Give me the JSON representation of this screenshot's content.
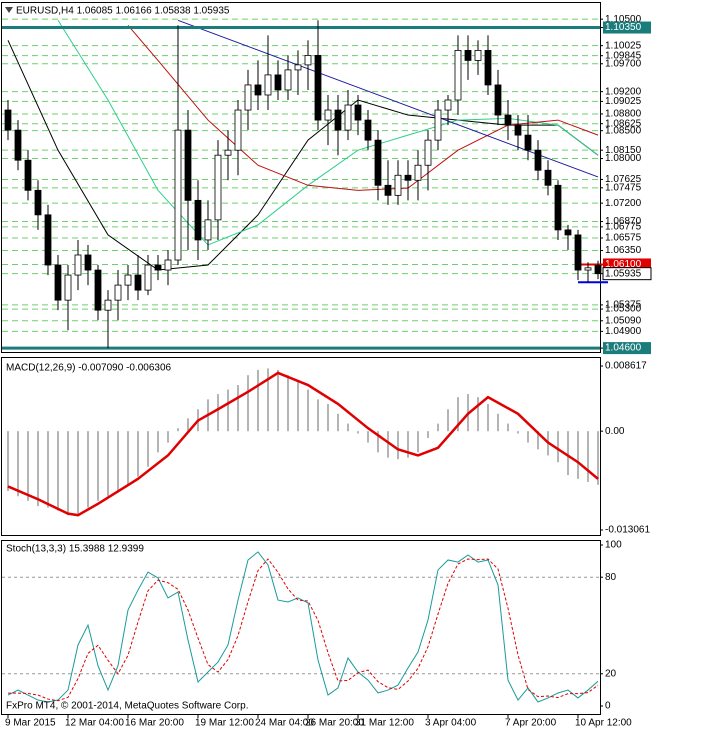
{
  "chart_data": [
    {
      "type": "candlestick",
      "title": "EURUSD,H4  1.06085 1.06166 1.05838 1.05935",
      "open": [
        1.0887,
        1.0851,
        1.0797,
        1.0743,
        1.0699,
        1.0609,
        1.0546,
        1.0591,
        1.0627,
        1.06,
        1.0528,
        1.0546,
        1.0573,
        1.0591,
        1.0564,
        1.0609,
        1.06,
        1.0618,
        1.0851,
        1.0725,
        1.0654,
        1.069,
        1.0806,
        1.0815,
        1.0887,
        1.0932,
        1.0914,
        1.095,
        1.0923,
        1.0959,
        1.0968,
        1.0985,
        1.0869,
        1.0887,
        1.0851,
        1.0896,
        1.0869,
        1.0833,
        1.0752,
        1.0734,
        1.077,
        1.0761,
        1.0788,
        1.0833,
        1.0887,
        1.0905,
        1.0994,
        1.0976,
        1.0994,
        1.0932,
        1.0878,
        1.086,
        1.0842,
        1.0815,
        1.0779,
        1.0752,
        1.0672,
        1.0663,
        1.06,
        1.06085
      ],
      "high": [
        1.0905,
        1.0869,
        1.0815,
        1.0761,
        1.0717,
        1.0627,
        1.0609,
        1.0654,
        1.0645,
        1.0609,
        1.0564,
        1.06,
        1.0609,
        1.0627,
        1.0627,
        1.0627,
        1.0636,
        1.1039,
        1.0887,
        1.0761,
        1.0725,
        1.0833,
        1.0851,
        1.0905,
        1.0959,
        1.0976,
        1.1021,
        1.0976,
        1.0985,
        1.0994,
        1.1012,
        1.1048,
        1.0914,
        1.0914,
        1.0923,
        1.0914,
        1.0887,
        1.0851,
        1.0797,
        1.0797,
        1.0797,
        1.0815,
        1.0851,
        1.0905,
        1.0914,
        1.1021,
        1.1021,
        1.1012,
        1.1021,
        1.0959,
        1.0905,
        1.0878,
        1.0878,
        1.0833,
        1.0797,
        1.0761,
        1.0681,
        1.0672,
        1.0614,
        1.06166
      ],
      "low": [
        1.0833,
        1.0779,
        1.0725,
        1.0672,
        1.0591,
        1.0528,
        1.0492,
        1.0564,
        1.0573,
        1.051,
        1.046,
        1.051,
        1.0546,
        1.0546,
        1.0555,
        1.0582,
        1.0573,
        1.0609,
        1.0636,
        1.0618,
        1.0636,
        1.0654,
        1.0761,
        1.077,
        1.0851,
        1.0887,
        1.0887,
        1.0905,
        1.0905,
        1.0914,
        1.0923,
        1.0851,
        1.0824,
        1.0806,
        1.0833,
        1.0842,
        1.0815,
        1.0725,
        1.0717,
        1.0717,
        1.0725,
        1.0725,
        1.0743,
        1.0815,
        1.086,
        1.0878,
        1.0941,
        1.095,
        1.0914,
        1.086,
        1.0833,
        1.0815,
        1.0797,
        1.0761,
        1.0734,
        1.0654,
        1.0636,
        1.0582,
        1.0578,
        1.05838
      ],
      "close": [
        1.0851,
        1.0797,
        1.0743,
        1.0699,
        1.0609,
        1.0546,
        1.0591,
        1.0627,
        1.06,
        1.0528,
        1.0546,
        1.0573,
        1.0591,
        1.0564,
        1.0609,
        1.06,
        1.0618,
        1.0851,
        1.0725,
        1.0654,
        1.069,
        1.0806,
        1.0815,
        1.0887,
        1.0932,
        1.0914,
        1.095,
        1.0923,
        1.0959,
        1.0968,
        1.0985,
        1.0869,
        1.0887,
        1.0851,
        1.0896,
        1.0869,
        1.0833,
        1.0752,
        1.0734,
        1.077,
        1.0761,
        1.0788,
        1.0833,
        1.0887,
        1.0905,
        1.0994,
        1.0976,
        1.0994,
        1.0932,
        1.0878,
        1.086,
        1.0842,
        1.0815,
        1.0779,
        1.0752,
        1.0672,
        1.0663,
        1.06,
        1.0604,
        1.05935
      ],
      "up_color": "#ffffff",
      "down_color": "#000000",
      "series": [
        {
          "color": "#000000",
          "x": [
            0,
            5,
            10,
            15,
            20,
            25,
            30,
            35,
            40,
            45,
            50,
            55,
            59
          ],
          "values": [
            1.1012,
            1.0815,
            1.0663,
            1.06,
            1.0609,
            1.0699,
            1.0833,
            1.0905,
            1.0878,
            1.0869,
            1.086,
            1.086,
            1.0806
          ]
        },
        {
          "color": "#2ecf8a",
          "x": [
            5,
            10,
            15,
            20,
            25,
            30,
            35,
            40,
            45,
            50,
            55,
            59
          ],
          "values": [
            1.1048,
            1.0905,
            1.0743,
            1.0645,
            1.0681,
            1.0752,
            1.0815,
            1.0842,
            1.0869,
            1.0872,
            1.086,
            1.0806
          ]
        },
        {
          "color": "#c01010",
          "x": [
            12,
            15,
            20,
            25,
            30,
            35,
            40,
            45,
            50,
            55,
            59
          ],
          "values": [
            1.1039,
            1.0976,
            1.0869,
            1.0788,
            1.0752,
            1.0743,
            1.0747,
            1.0815,
            1.086,
            1.0869,
            1.0842
          ]
        }
      ],
      "trendlines": [
        {
          "color": "#1a1aa0",
          "x": [
            17,
            59
          ],
          "values": [
            1.1048,
            1.0767
          ]
        }
      ],
      "hlines": [
        {
          "value": 1.1035,
          "color": "#1b7c7c"
        },
        {
          "value": 1.046,
          "color": "#1b7c7c"
        },
        {
          "value": 1.061,
          "color": "#e00000",
          "x": [
            57,
            60
          ]
        },
        {
          "value": 1.0578,
          "color": "#0000e0",
          "x": [
            57,
            60
          ]
        }
      ],
      "ylim": [
        1.0453,
        1.1079
      ],
      "yticks": [
        {
          "value": 1.105,
          "label": "1.10500"
        },
        {
          "value": 1.1035,
          "label": "1.10350"
        },
        1.10025,
        1.09845,
        {
          "value": 1.097,
          "label": "1.09700"
        },
        {
          "value": 1.092,
          "label": "1.09200"
        },
        1.09025,
        {
          "value": 1.088,
          "label": "1.08800"
        },
        1.08625,
        {
          "value": 1.085,
          "label": "1.08500"
        },
        {
          "value": 1.0815,
          "label": "1.08150"
        },
        {
          "value": 1.08,
          "label": "1.08000"
        },
        1.07625,
        1.07475,
        {
          "value": 1.072,
          "label": "1.07200"
        },
        {
          "value": 1.0687,
          "label": "1.06870"
        },
        1.06775,
        1.06575,
        {
          "value": 1.0635,
          "label": "1.06350"
        },
        {
          "value": 1.061,
          "label": "1.06100"
        },
        1.05935,
        1.05375,
        {
          "value": 1.053,
          "label": "1.05300"
        },
        {
          "value": 1.0509,
          "label": "1.05090"
        },
        {
          "value": 1.049,
          "label": "1.04900"
        },
        {
          "value": 1.046,
          "label": "1.04600"
        }
      ],
      "grid": true,
      "grid_color": "#6fcf6f"
    },
    {
      "type": "combo",
      "title": "MACD(12,26,9) -0.007090 -0.006306",
      "series": [
        {
          "type": "bar",
          "color": "#b4b4b4",
          "values": [
            -0.0079,
            -0.0086,
            -0.0092,
            -0.0099,
            -0.0101,
            -0.0105,
            -0.0111,
            -0.0109,
            -0.0101,
            -0.0092,
            -0.0086,
            -0.0079,
            -0.007,
            -0.006,
            -0.0047,
            -0.0028,
            -0.0015,
            0.0004,
            0.0017,
            0.0029,
            0.0042,
            0.0049,
            0.0055,
            0.0061,
            0.0074,
            0.0081,
            0.0083,
            0.0081,
            0.0074,
            0.0068,
            0.0055,
            0.0042,
            0.0036,
            0.0023,
            0.001,
            -0.0003,
            -0.0015,
            -0.0028,
            -0.0035,
            -0.0037,
            -0.0035,
            -0.0028,
            -0.0009,
            0.001,
            0.0029,
            0.0045,
            0.0049,
            0.0045,
            0.0036,
            0.0023,
            0.001,
            -0.0003,
            -0.0015,
            -0.0024,
            -0.0032,
            -0.0041,
            -0.0058,
            -0.0063,
            -0.0067,
            -0.00709
          ]
        },
        {
          "type": "line",
          "color": "#e00000",
          "x": [
            0,
            3,
            6,
            7,
            9,
            13,
            16,
            19,
            21,
            24,
            27,
            30,
            33,
            36,
            39,
            41,
            43,
            46,
            48,
            51,
            54,
            57,
            59
          ],
          "values": [
            -0.0073,
            -0.009,
            -0.0109,
            -0.0111,
            -0.0096,
            -0.0063,
            -0.0032,
            0.0014,
            0.0029,
            0.0052,
            0.0077,
            0.0061,
            0.0036,
            0.0004,
            -0.0024,
            -0.0032,
            -0.0022,
            0.0023,
            0.0045,
            0.0023,
            -0.0015,
            -0.0041,
            -0.006306
          ]
        }
      ],
      "ylim": [
        -0.013061,
        0.008617
      ],
      "yticks": [
        -0.013061,
        {
          "value": 0,
          "label": "0.00"
        },
        0.008617
      ]
    },
    {
      "type": "line",
      "title": "Stoch(13,3,3) 15.3988 12.9399",
      "series": [
        {
          "color": "#1a9a9a",
          "values": [
            6.8,
            9.9,
            6.8,
            3.7,
            2.5,
            3.7,
            9.9,
            37.9,
            50.3,
            25,
            9.9,
            25,
            59.6,
            72,
            83.2,
            79.5,
            67.1,
            70.8,
            41,
            14.9,
            21.1,
            27.3,
            37.9,
            65.8,
            90.7,
            95.7,
            87.6,
            65.8,
            64.6,
            67.1,
            64,
            28.6,
            6.8,
            11.2,
            29.8,
            21.1,
            16.1,
            8.1,
            9.9,
            13,
            23.6,
            33.5,
            53.4,
            84.5,
            90.7,
            89.4,
            93.8,
            89.4,
            90.7,
            75.2,
            16.1,
            3.7,
            11.2,
            2.5,
            5,
            8.1,
            9.9,
            5,
            9.9,
            15.3988
          ]
        },
        {
          "color": "#e00000",
          "dash": true,
          "values": [
            8,
            8,
            7.8,
            6.8,
            4.3,
            3.3,
            5.4,
            17,
            32.7,
            37.7,
            28.4,
            20,
            31.5,
            52.2,
            71.6,
            78.2,
            76.6,
            72.5,
            59.6,
            42.2,
            25.7,
            21.1,
            28.8,
            43.7,
            64.8,
            84.1,
            91.3,
            83,
            72.7,
            65.8,
            65.2,
            53.2,
            33.1,
            15.5,
            15.9,
            20.7,
            22.3,
            15.1,
            11.4,
            10.3,
            15.5,
            23.4,
            36.8,
            57.1,
            76.2,
            88.2,
            91.3,
            90.9,
            91.3,
            85.1,
            60.7,
            31.7,
            10.3,
            5.8,
            6.2,
            5.2,
            7.7,
            7.7,
            8.3,
            12.9399
          ]
        }
      ],
      "levels": [
        20,
        80
      ],
      "ylim": [
        0,
        100
      ],
      "yticks": [
        0,
        20,
        80,
        100
      ],
      "categories": [
        "9 Mar 2015",
        null,
        null,
        null,
        null,
        null,
        "12 Mar 04:00",
        null,
        null,
        null,
        null,
        null,
        "16 Mar 20:00",
        null,
        null,
        null,
        null,
        null,
        null,
        "19 Mar 12:00",
        null,
        null,
        null,
        null,
        null,
        "24 Mar 04:00",
        null,
        null,
        null,
        null,
        "26 Mar 20:00",
        null,
        null,
        null,
        null,
        "31 Mar 12:00",
        null,
        null,
        null,
        null,
        null,
        null,
        "3 Apr 04:00",
        null,
        null,
        null,
        null,
        null,
        null,
        null,
        "7 Apr 20:00",
        null,
        null,
        null,
        null,
        null,
        null,
        "10 Apr 12:00",
        null,
        null
      ],
      "footer": "FxPro MT4, © 2001-2014, MetaQuotes Software Corp."
    }
  ]
}
